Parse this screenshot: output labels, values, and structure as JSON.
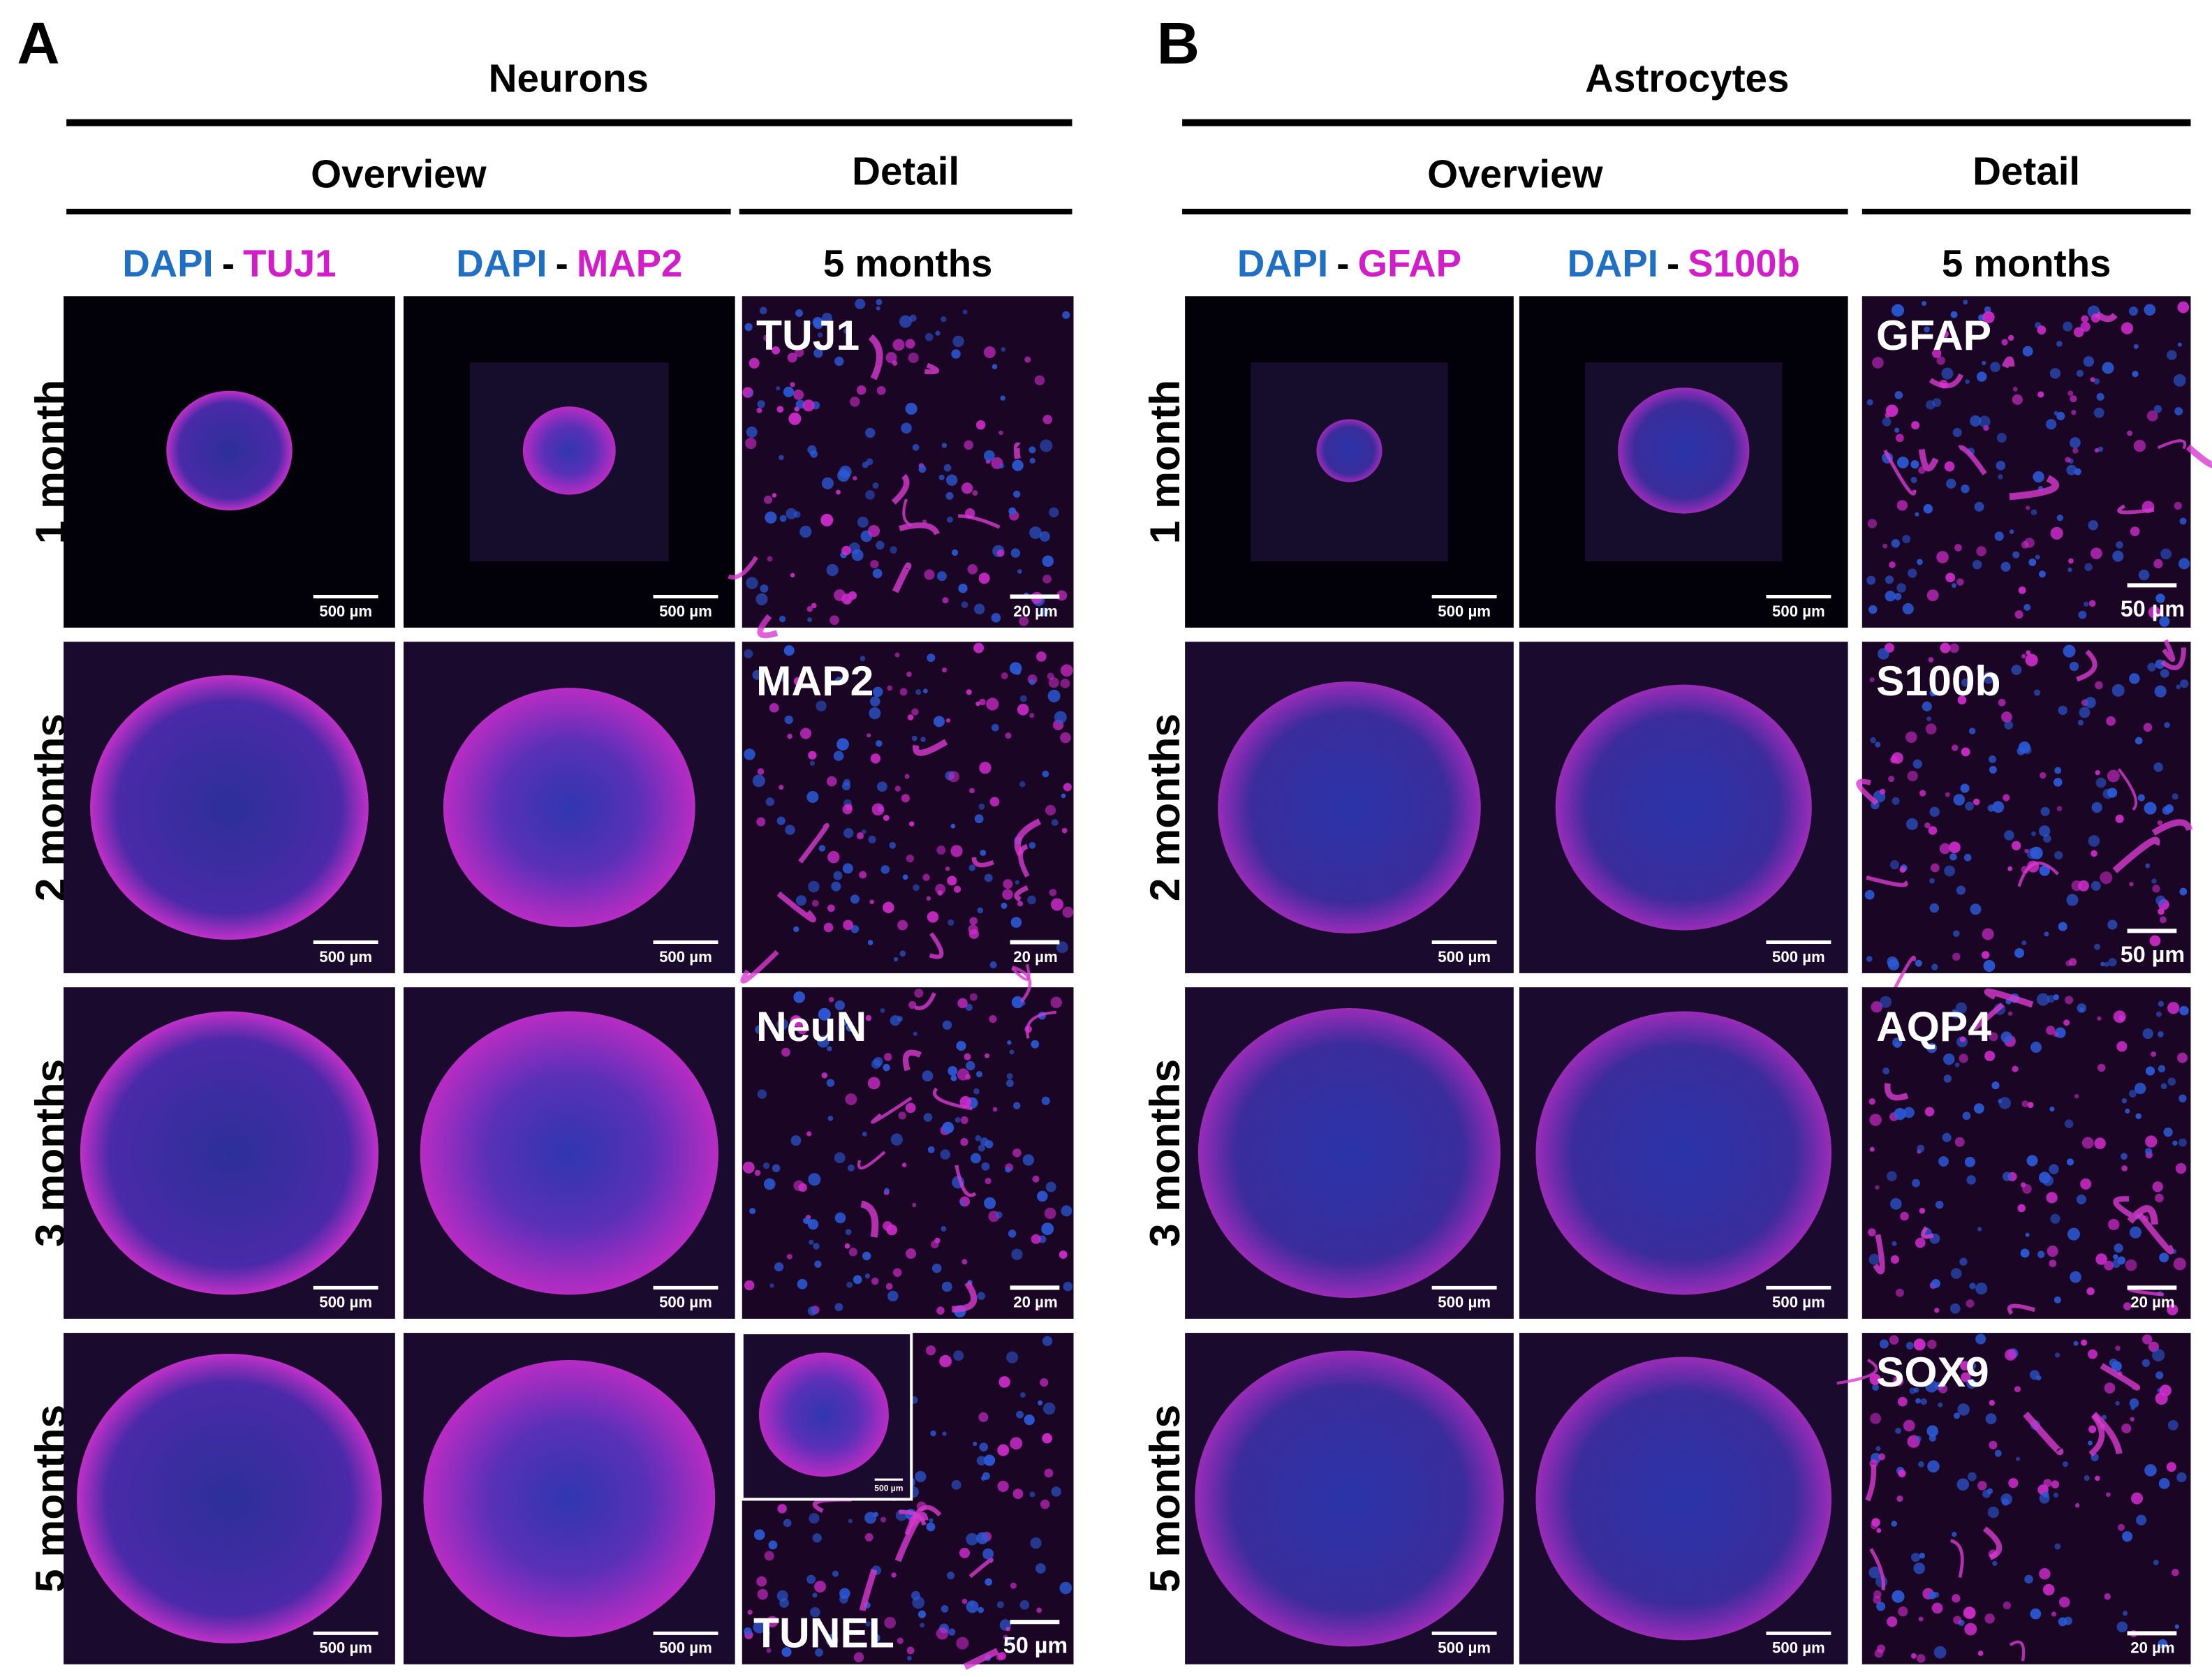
{
  "panels": [
    {
      "letter": "A",
      "title": "Neurons",
      "overview": "Overview",
      "detail": "Detail",
      "columns": [
        {
          "stain": "DAPI",
          "sep": "-",
          "marker": "TUJ1"
        },
        {
          "stain": "DAPI",
          "sep": "-",
          "marker": "MAP2"
        }
      ],
      "detail_column": "5 months",
      "rows": [
        {
          "label": "1 month",
          "scales": [
            "500 µm",
            "500 µm"
          ],
          "detail_marker": "TUJ1",
          "detail_scale": "20 µm"
        },
        {
          "label": "2 months",
          "scales": [
            "500 µm",
            "500 µm"
          ],
          "detail_marker": "MAP2",
          "detail_scale": "20 µm"
        },
        {
          "label": "3 months",
          "scales": [
            "500 µm",
            "500 µm"
          ],
          "detail_marker": "NeuN",
          "detail_scale": "20 µm"
        },
        {
          "label": "5 months",
          "scales": [
            "500 µm",
            "500 µm"
          ],
          "detail_marker": "TUNEL",
          "detail_scale": "50 µm",
          "inset_scale": "500 µm"
        }
      ]
    },
    {
      "letter": "B",
      "title": "Astrocytes",
      "overview": "Overview",
      "detail": "Detail",
      "columns": [
        {
          "stain": "DAPI",
          "sep": "-",
          "marker": "GFAP"
        },
        {
          "stain": "DAPI",
          "sep": "-",
          "marker": "S100b"
        }
      ],
      "detail_column": "5 months",
      "rows": [
        {
          "label": "1 month",
          "scales": [
            "500 µm",
            "500 µm"
          ],
          "detail_marker": "GFAP",
          "detail_scale": "50 µm"
        },
        {
          "label": "2 months",
          "scales": [
            "500 µm",
            "500 µm"
          ],
          "detail_marker": "S100b",
          "detail_scale": "50 µm"
        },
        {
          "label": "3 months",
          "scales": [
            "500 µm",
            "500 µm"
          ],
          "detail_marker": "AQP4",
          "detail_scale": "20 µm"
        },
        {
          "label": "5 months",
          "scales": [
            "500 µm",
            "500 µm"
          ],
          "detail_marker": "SOX9",
          "detail_scale": "20 µm"
        }
      ]
    }
  ]
}
